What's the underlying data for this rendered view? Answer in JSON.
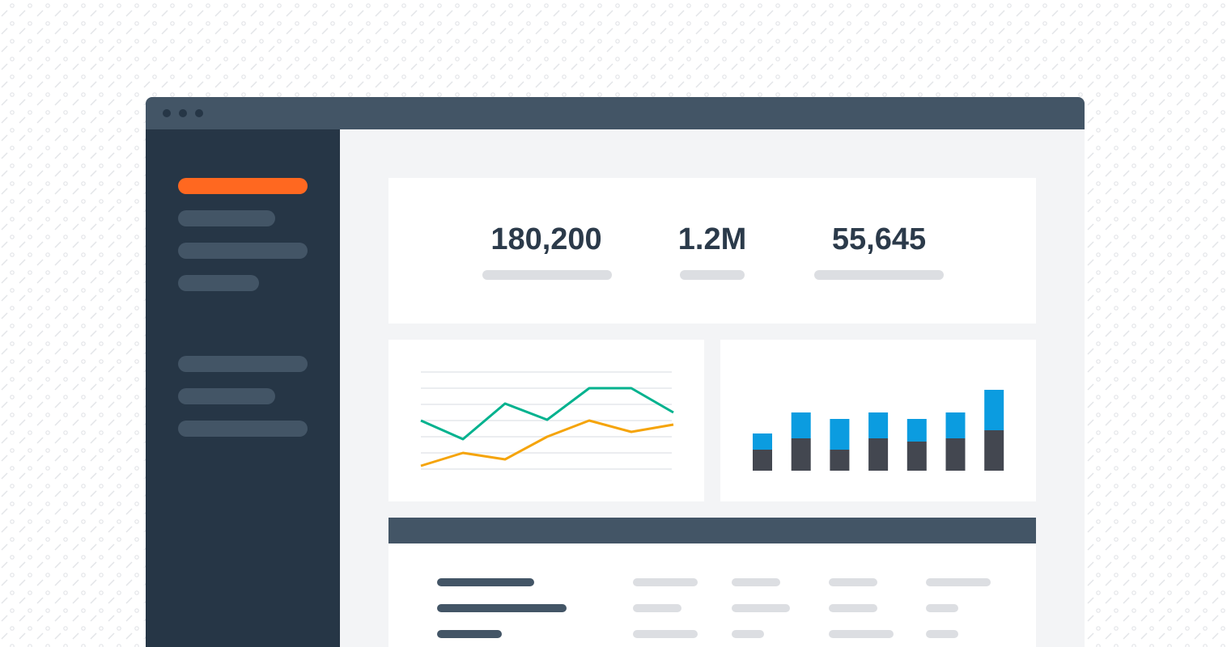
{
  "stats": [
    "180,200",
    "1.2M",
    "55,645"
  ],
  "chart_data": [
    {
      "type": "line",
      "ylim": [
        0,
        6
      ],
      "yticks": [
        0,
        1,
        2,
        3,
        4,
        5,
        6
      ],
      "grid": true,
      "series": [
        {
          "color": "#00b28e",
          "values": [
            3,
            1.85,
            4.05,
            3.05,
            5,
            5,
            3.5
          ]
        },
        {
          "color": "#f5a40a",
          "values": [
            0.2,
            1,
            0.6,
            2,
            3,
            2.3,
            2.75
          ]
        }
      ]
    },
    {
      "type": "stacked-bar",
      "ylim": [
        0,
        10
      ],
      "series": [
        {
          "color": "#434750",
          "values": [
            2.6,
            4,
            2.6,
            4,
            3.6,
            4,
            5
          ]
        },
        {
          "color": "#0b9ce0",
          "values": [
            2,
            3.2,
            3.8,
            3.2,
            2.8,
            3.2,
            5
          ]
        }
      ]
    }
  ]
}
